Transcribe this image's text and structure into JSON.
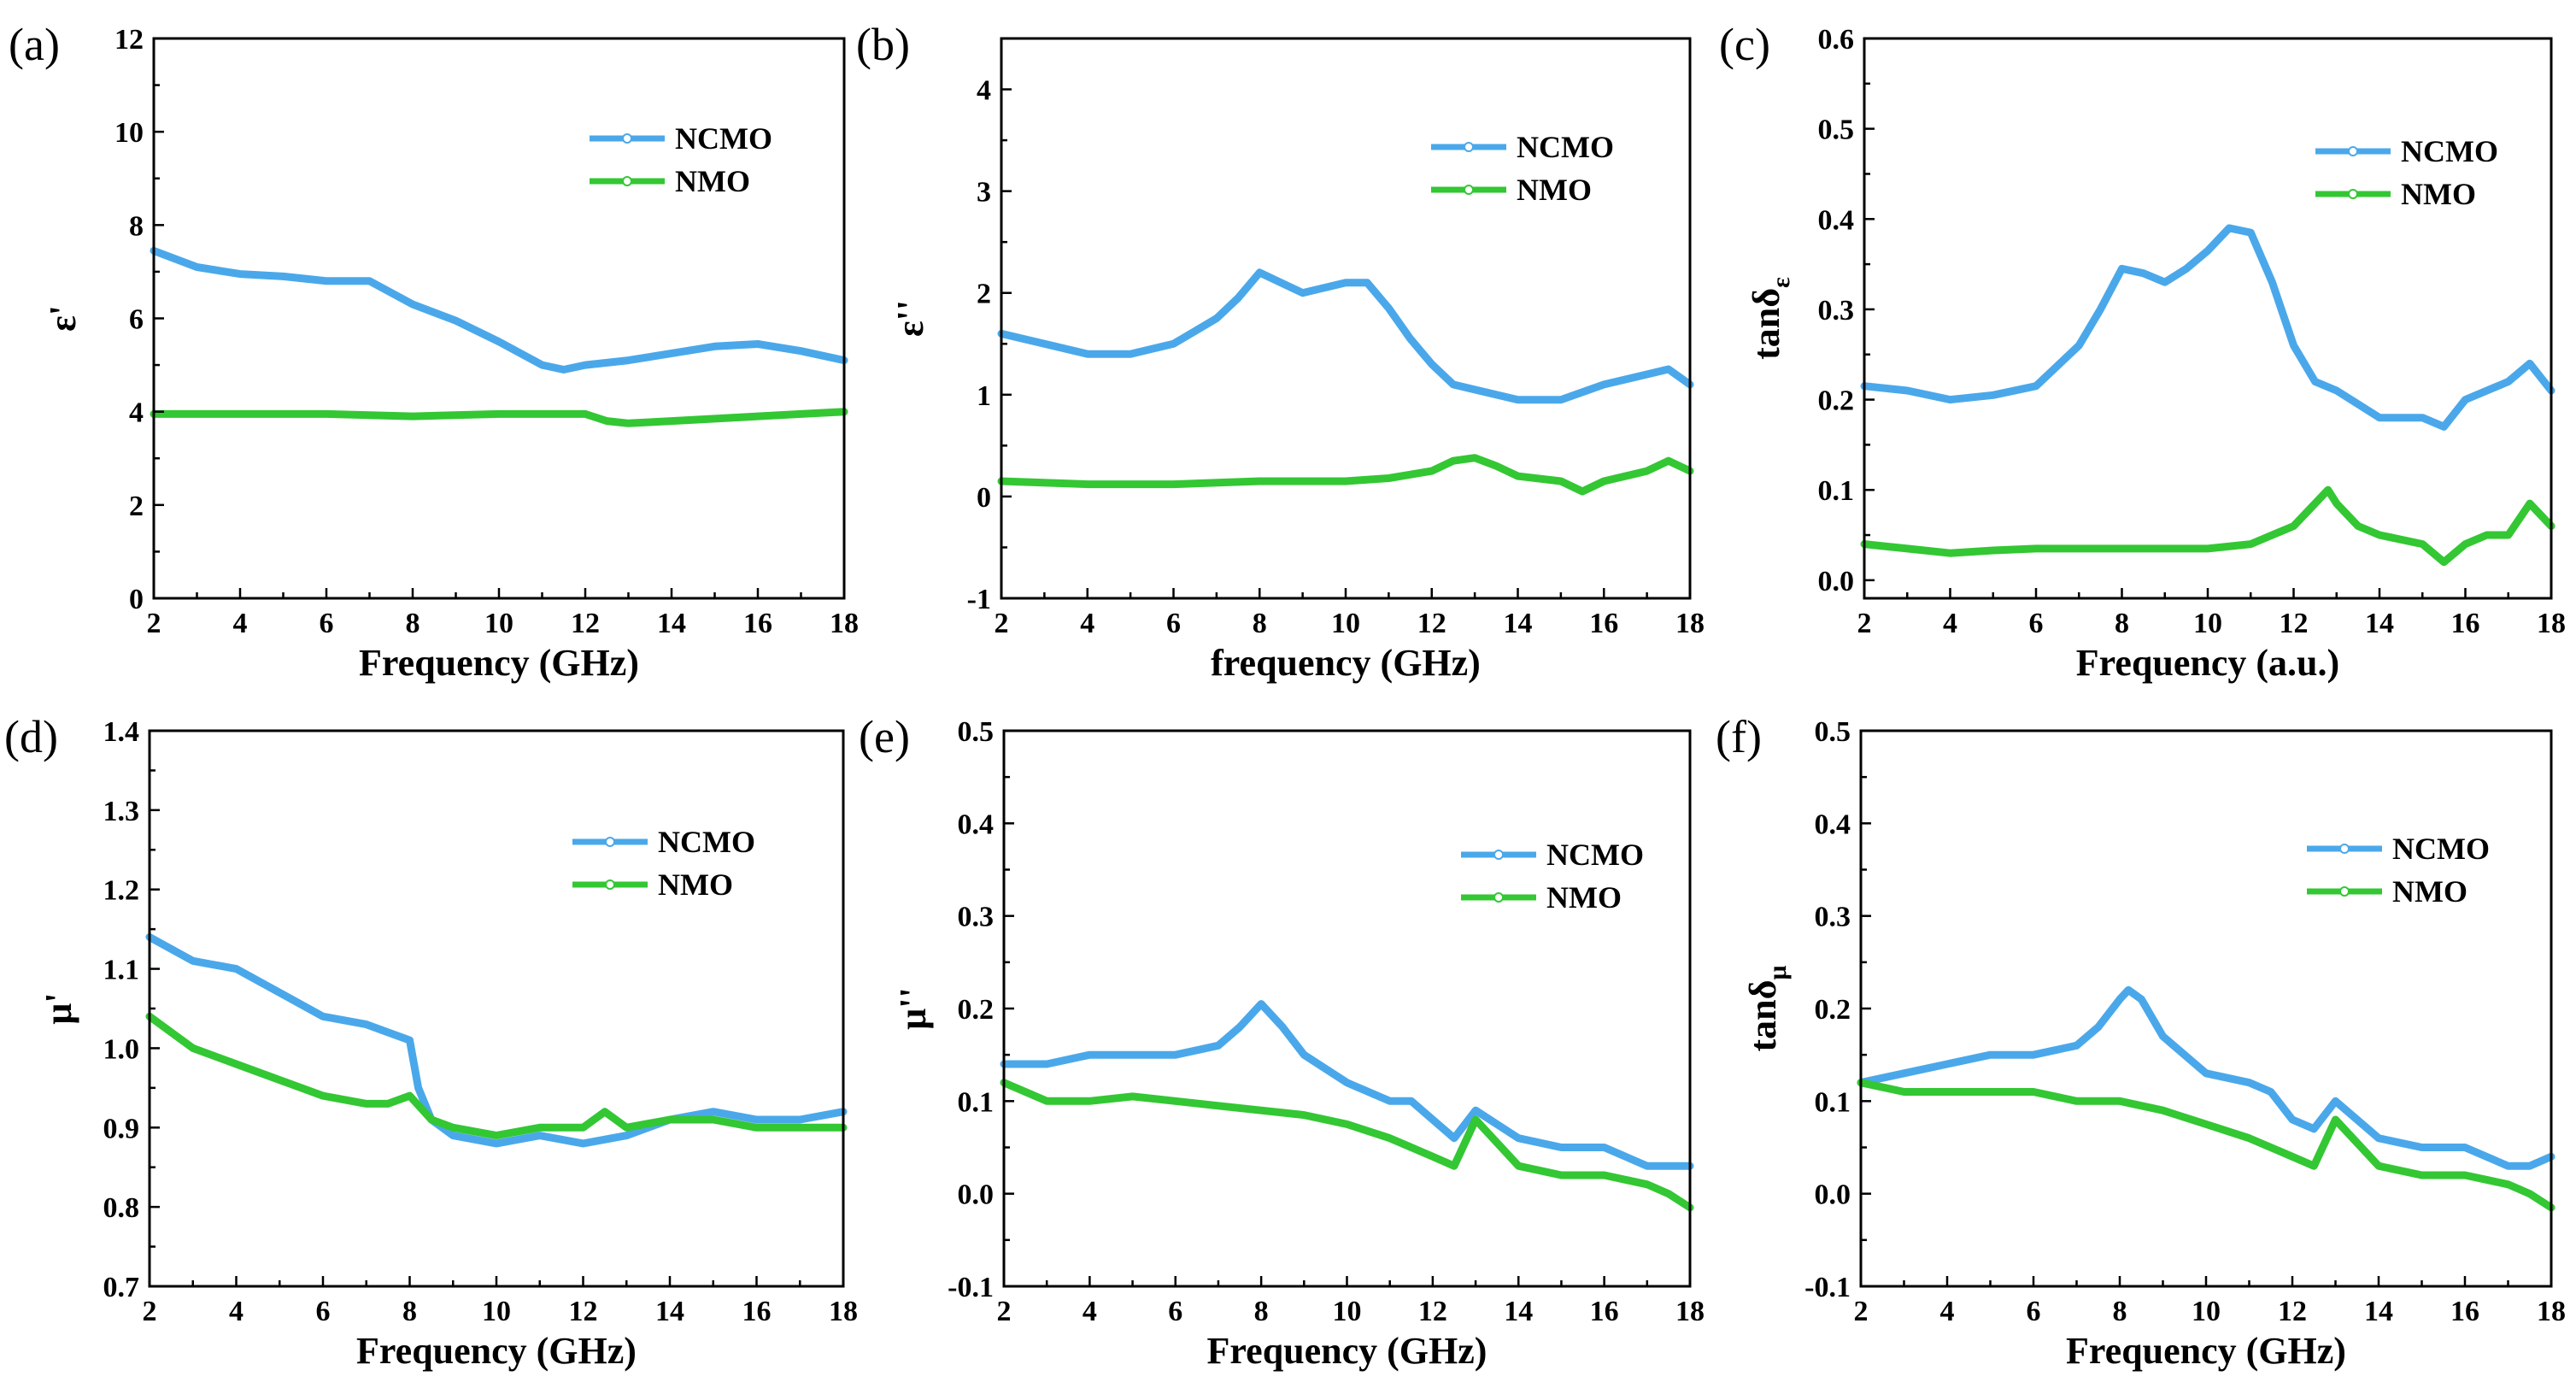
{
  "colors": {
    "ncmo": "#4aa8ea",
    "nmo": "#33c733"
  },
  "chart_data": [
    {
      "type": "line",
      "panel": "(a)",
      "xlabel": "Frequency (GHz)",
      "ylabel": "ε'",
      "xlim": [
        2,
        18
      ],
      "ylim": [
        0,
        12
      ],
      "xticks": [
        "2",
        "4",
        "6",
        "8",
        "10",
        "12",
        "14",
        "16",
        "18"
      ],
      "yticks": [
        "0",
        "2",
        "4",
        "6",
        "8",
        "10",
        "12"
      ],
      "legend": [
        "NCMO",
        "NMO"
      ],
      "series": [
        {
          "name": "NCMO",
          "x": [
            2,
            3,
            4,
            5,
            6,
            7,
            8,
            9,
            10,
            11,
            11.5,
            12,
            13,
            14,
            15,
            16,
            17,
            18
          ],
          "y": [
            7.45,
            7.1,
            6.95,
            6.9,
            6.8,
            6.8,
            6.3,
            5.95,
            5.5,
            5.0,
            4.9,
            5.0,
            5.1,
            5.25,
            5.4,
            5.45,
            5.3,
            5.1
          ]
        },
        {
          "name": "NMO",
          "x": [
            2,
            4,
            6,
            8,
            10,
            12,
            12.5,
            13,
            14,
            15,
            16,
            17,
            18
          ],
          "y": [
            3.95,
            3.95,
            3.95,
            3.9,
            3.95,
            3.95,
            3.8,
            3.75,
            3.8,
            3.85,
            3.9,
            3.95,
            4.0
          ]
        }
      ]
    },
    {
      "type": "line",
      "panel": "(b)",
      "xlabel": "frequency (GHz)",
      "ylabel": "ε''",
      "xlim": [
        2,
        18
      ],
      "ylim": [
        -1,
        4.5
      ],
      "xticks": [
        "2",
        "4",
        "6",
        "8",
        "10",
        "12",
        "14",
        "16",
        "18"
      ],
      "yticks": [
        "-1",
        "0",
        "1",
        "2",
        "3",
        "4"
      ],
      "legend": [
        "NCMO",
        "NMO"
      ],
      "series": [
        {
          "name": "NCMO",
          "x": [
            2,
            3,
            4,
            5,
            6,
            7,
            7.5,
            8,
            8.5,
            9,
            9.5,
            10,
            10.5,
            11,
            11.5,
            12,
            12.5,
            13,
            14,
            15,
            16,
            17,
            17.5,
            18
          ],
          "y": [
            1.6,
            1.5,
            1.4,
            1.4,
            1.5,
            1.75,
            1.95,
            2.2,
            2.1,
            2.0,
            2.05,
            2.1,
            2.1,
            1.85,
            1.55,
            1.3,
            1.1,
            1.05,
            0.95,
            0.95,
            1.1,
            1.2,
            1.25,
            1.1
          ]
        },
        {
          "name": "NMO",
          "x": [
            2,
            4,
            6,
            8,
            10,
            11,
            12,
            12.5,
            13,
            13.5,
            14,
            15,
            15.5,
            16,
            17,
            17.5,
            18
          ],
          "y": [
            0.15,
            0.12,
            0.12,
            0.15,
            0.15,
            0.18,
            0.25,
            0.35,
            0.38,
            0.3,
            0.2,
            0.15,
            0.05,
            0.15,
            0.25,
            0.35,
            0.25
          ]
        }
      ]
    },
    {
      "type": "line",
      "panel": "(c)",
      "xlabel": "Frequency (a.u.)",
      "ylabel": "tanδε",
      "xlim": [
        2,
        18
      ],
      "ylim": [
        -0.02,
        0.6
      ],
      "xticks": [
        "2",
        "4",
        "6",
        "8",
        "10",
        "12",
        "14",
        "16",
        "18"
      ],
      "yticks": [
        "0.0",
        "0.1",
        "0.2",
        "0.3",
        "0.4",
        "0.5",
        "0.6"
      ],
      "legend": [
        "NCMO",
        "NMO"
      ],
      "series": [
        {
          "name": "NCMO",
          "x": [
            2,
            3,
            4,
            5,
            6,
            7,
            7.5,
            8,
            8.5,
            9,
            9.5,
            10,
            10.5,
            11,
            11.5,
            12,
            12.5,
            13,
            14,
            15,
            15.5,
            16,
            17,
            17.5,
            18
          ],
          "y": [
            0.215,
            0.21,
            0.2,
            0.205,
            0.215,
            0.26,
            0.3,
            0.345,
            0.34,
            0.33,
            0.345,
            0.365,
            0.39,
            0.385,
            0.33,
            0.26,
            0.22,
            0.21,
            0.18,
            0.18,
            0.17,
            0.2,
            0.22,
            0.24,
            0.21
          ]
        },
        {
          "name": "NMO",
          "x": [
            2,
            3,
            4,
            5,
            6,
            7,
            8,
            9,
            10,
            11,
            11.5,
            12,
            12.5,
            12.8,
            13,
            13.5,
            14,
            15,
            15.5,
            16,
            16.5,
            17,
            17.5,
            18
          ],
          "y": [
            0.04,
            0.035,
            0.03,
            0.033,
            0.035,
            0.035,
            0.035,
            0.035,
            0.035,
            0.04,
            0.05,
            0.06,
            0.085,
            0.1,
            0.085,
            0.06,
            0.05,
            0.04,
            0.02,
            0.04,
            0.05,
            0.05,
            0.085,
            0.06
          ]
        }
      ]
    },
    {
      "type": "line",
      "panel": "(d)",
      "xlabel": "Frequency (GHz)",
      "ylabel": "μ'",
      "xlim": [
        2,
        18
      ],
      "ylim": [
        0.7,
        1.4
      ],
      "xticks": [
        "2",
        "4",
        "6",
        "8",
        "10",
        "12",
        "14",
        "16",
        "18"
      ],
      "yticks": [
        "0.7",
        "0.8",
        "0.9",
        "1.0",
        "1.1",
        "1.2",
        "1.3",
        "1.4"
      ],
      "legend": [
        "NCMO",
        "NMO"
      ],
      "series": [
        {
          "name": "NCMO",
          "x": [
            2,
            3,
            4,
            5,
            6,
            7,
            7.5,
            8,
            8.2,
            8.5,
            9,
            10,
            11,
            12,
            13,
            14,
            15,
            16,
            17,
            18
          ],
          "y": [
            1.14,
            1.11,
            1.1,
            1.07,
            1.04,
            1.03,
            1.02,
            1.01,
            0.95,
            0.91,
            0.89,
            0.88,
            0.89,
            0.88,
            0.89,
            0.91,
            0.92,
            0.91,
            0.91,
            0.92
          ]
        },
        {
          "name": "NMO",
          "x": [
            2,
            3,
            4,
            5,
            6,
            7,
            7.5,
            8,
            8.5,
            9,
            10,
            11,
            12,
            12.5,
            13,
            14,
            15,
            16,
            17,
            18
          ],
          "y": [
            1.04,
            1.0,
            0.98,
            0.96,
            0.94,
            0.93,
            0.93,
            0.94,
            0.91,
            0.9,
            0.89,
            0.9,
            0.9,
            0.92,
            0.9,
            0.91,
            0.91,
            0.9,
            0.9,
            0.9
          ]
        }
      ]
    },
    {
      "type": "line",
      "panel": "(e)",
      "xlabel": "Frequency (GHz)",
      "ylabel": "μ''",
      "xlim": [
        2,
        18
      ],
      "ylim": [
        -0.1,
        0.5
      ],
      "xticks": [
        "2",
        "4",
        "6",
        "8",
        "10",
        "12",
        "14",
        "16",
        "18"
      ],
      "yticks": [
        "-0.1",
        "0.0",
        "0.1",
        "0.2",
        "0.3",
        "0.4",
        "0.5"
      ],
      "legend": [
        "NCMO",
        "NMO"
      ],
      "series": [
        {
          "name": "NCMO",
          "x": [
            2,
            3,
            4,
            5,
            6,
            7,
            7.5,
            8,
            8.5,
            9,
            10,
            11,
            11.5,
            12,
            12.5,
            13,
            14,
            15,
            16,
            17,
            17.5,
            18
          ],
          "y": [
            0.14,
            0.14,
            0.15,
            0.15,
            0.15,
            0.16,
            0.18,
            0.205,
            0.18,
            0.15,
            0.12,
            0.1,
            0.1,
            0.08,
            0.06,
            0.09,
            0.06,
            0.05,
            0.05,
            0.03,
            0.03,
            0.03
          ]
        },
        {
          "name": "NMO",
          "x": [
            2,
            3,
            4,
            5,
            6,
            7,
            8,
            9,
            10,
            11,
            12,
            12.5,
            13,
            14,
            15,
            16,
            17,
            17.5,
            18
          ],
          "y": [
            0.12,
            0.1,
            0.1,
            0.105,
            0.1,
            0.095,
            0.09,
            0.085,
            0.075,
            0.06,
            0.04,
            0.03,
            0.08,
            0.03,
            0.02,
            0.02,
            0.01,
            0.0,
            -0.015
          ]
        }
      ]
    },
    {
      "type": "line",
      "panel": "(f)",
      "xlabel": "Frequency (GHz)",
      "ylabel": "tanδμ",
      "xlim": [
        2,
        18
      ],
      "ylim": [
        -0.1,
        0.5
      ],
      "xticks": [
        "2",
        "4",
        "6",
        "8",
        "10",
        "12",
        "14",
        "16",
        "18"
      ],
      "yticks": [
        "-0.1",
        "0.0",
        "0.1",
        "0.2",
        "0.3",
        "0.4",
        "0.5"
      ],
      "legend": [
        "NCMO",
        "NMO"
      ],
      "series": [
        {
          "name": "NCMO",
          "x": [
            2,
            3,
            4,
            5,
            6,
            7,
            7.5,
            8,
            8.2,
            8.5,
            9,
            10,
            11,
            11.5,
            12,
            12.5,
            13,
            14,
            15,
            16,
            17,
            17.5,
            18
          ],
          "y": [
            0.12,
            0.13,
            0.14,
            0.15,
            0.15,
            0.16,
            0.18,
            0.21,
            0.22,
            0.21,
            0.17,
            0.13,
            0.12,
            0.11,
            0.08,
            0.07,
            0.1,
            0.06,
            0.05,
            0.05,
            0.03,
            0.03,
            0.04
          ]
        },
        {
          "name": "NMO",
          "x": [
            2,
            3,
            4,
            5,
            6,
            7,
            8,
            9,
            10,
            11,
            12,
            12.5,
            13,
            14,
            15,
            16,
            17,
            17.5,
            18
          ],
          "y": [
            0.12,
            0.11,
            0.11,
            0.11,
            0.11,
            0.1,
            0.1,
            0.09,
            0.075,
            0.06,
            0.04,
            0.03,
            0.08,
            0.03,
            0.02,
            0.02,
            0.01,
            0.0,
            -0.015
          ]
        }
      ]
    }
  ]
}
